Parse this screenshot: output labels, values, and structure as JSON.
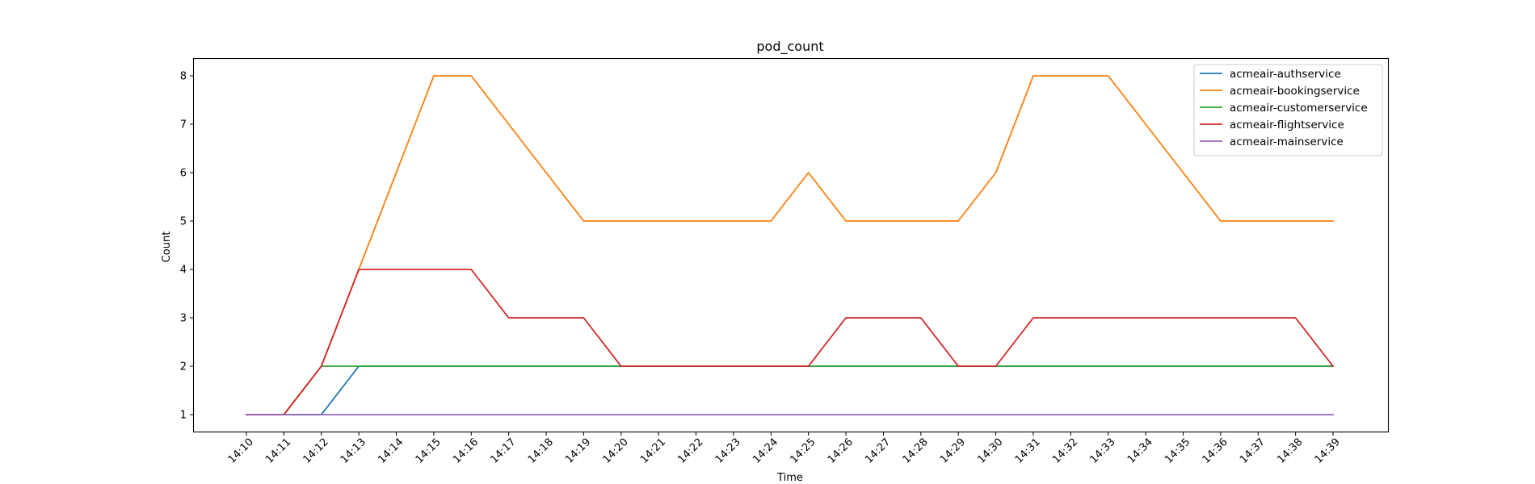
{
  "chart_data": {
    "type": "line",
    "title": "pod_count",
    "xlabel": "Time",
    "ylabel": "Count",
    "x": [
      "14:10",
      "14:11",
      "14:12",
      "14:13",
      "14:14",
      "14:15",
      "14:16",
      "14:17",
      "14:18",
      "14:19",
      "14:20",
      "14:21",
      "14:22",
      "14:23",
      "14:24",
      "14:25",
      "14:26",
      "14:27",
      "14:28",
      "14:29",
      "14:30",
      "14:31",
      "14:32",
      "14:33",
      "14:34",
      "14:35",
      "14:36",
      "14:37",
      "14:38",
      "14:39"
    ],
    "yticks": [
      1,
      2,
      3,
      4,
      5,
      6,
      7,
      8
    ],
    "ylim": [
      0.65,
      8.35
    ],
    "grid": false,
    "legend_position": "top-right",
    "series": [
      {
        "name": "acmeair-authservice",
        "color": "#1f77b4",
        "values": [
          1,
          1,
          1,
          2,
          2,
          2,
          2,
          2,
          2,
          2,
          2,
          2,
          2,
          2,
          2,
          2,
          2,
          2,
          2,
          2,
          2,
          2,
          2,
          2,
          2,
          2,
          2,
          2,
          2,
          2
        ]
      },
      {
        "name": "acmeair-bookingservice",
        "color": "#ff7f0e",
        "values": [
          1,
          1,
          2,
          4,
          6,
          8,
          8,
          7,
          6,
          5,
          5,
          5,
          5,
          5,
          5,
          6,
          5,
          5,
          5,
          5,
          6,
          8,
          8,
          8,
          7,
          6,
          5,
          5,
          5,
          5
        ]
      },
      {
        "name": "acmeair-customerservice",
        "color": "#2ca02c",
        "values": [
          1,
          1,
          2,
          2,
          2,
          2,
          2,
          2,
          2,
          2,
          2,
          2,
          2,
          2,
          2,
          2,
          2,
          2,
          2,
          2,
          2,
          2,
          2,
          2,
          2,
          2,
          2,
          2,
          2,
          2
        ]
      },
      {
        "name": "acmeair-flightservice",
        "color": "#d62728",
        "values": [
          1,
          1,
          2,
          4,
          4,
          4,
          4,
          3,
          3,
          3,
          2,
          2,
          2,
          2,
          2,
          2,
          3,
          3,
          3,
          2,
          2,
          3,
          3,
          3,
          3,
          3,
          3,
          3,
          3,
          2
        ]
      },
      {
        "name": "acmeair-mainservice",
        "color": "#9467bd",
        "values": [
          1,
          1,
          1,
          1,
          1,
          1,
          1,
          1,
          1,
          1,
          1,
          1,
          1,
          1,
          1,
          1,
          1,
          1,
          1,
          1,
          1,
          1,
          1,
          1,
          1,
          1,
          1,
          1,
          1,
          1
        ]
      }
    ]
  }
}
